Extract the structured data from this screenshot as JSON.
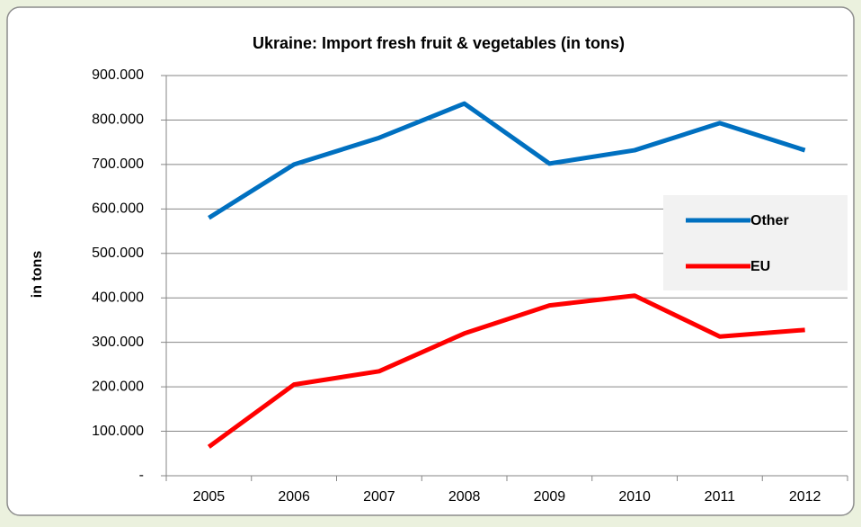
{
  "chart_data": {
    "type": "line",
    "title": "Ukraine: Import fresh fruit & vegetables (in tons)",
    "y_label": "in tons",
    "categories": [
      "2005",
      "2006",
      "2007",
      "2008",
      "2009",
      "2010",
      "2011",
      "2012"
    ],
    "series": [
      {
        "name": "Other",
        "color": "#0070c0",
        "values": [
          580000,
          700000,
          760000,
          837000,
          702000,
          732000,
          793000,
          732000
        ]
      },
      {
        "name": "EU",
        "color": "#ff0000",
        "values": [
          65000,
          205000,
          235000,
          320000,
          383000,
          405000,
          313000,
          328000
        ]
      }
    ],
    "ylim": [
      0,
      900000
    ],
    "yticks": [
      {
        "value": 0,
        "label": "-"
      },
      {
        "value": 100000,
        "label": "100.000"
      },
      {
        "value": 200000,
        "label": "200.000"
      },
      {
        "value": 300000,
        "label": "300.000"
      },
      {
        "value": 400000,
        "label": "400.000"
      },
      {
        "value": 500000,
        "label": "500.000"
      },
      {
        "value": 600000,
        "label": "600.000"
      },
      {
        "value": 700000,
        "label": "700.000"
      },
      {
        "value": 800000,
        "label": "800.000"
      },
      {
        "value": 900000,
        "label": "900.000"
      }
    ],
    "grid": true,
    "legend": "right"
  }
}
